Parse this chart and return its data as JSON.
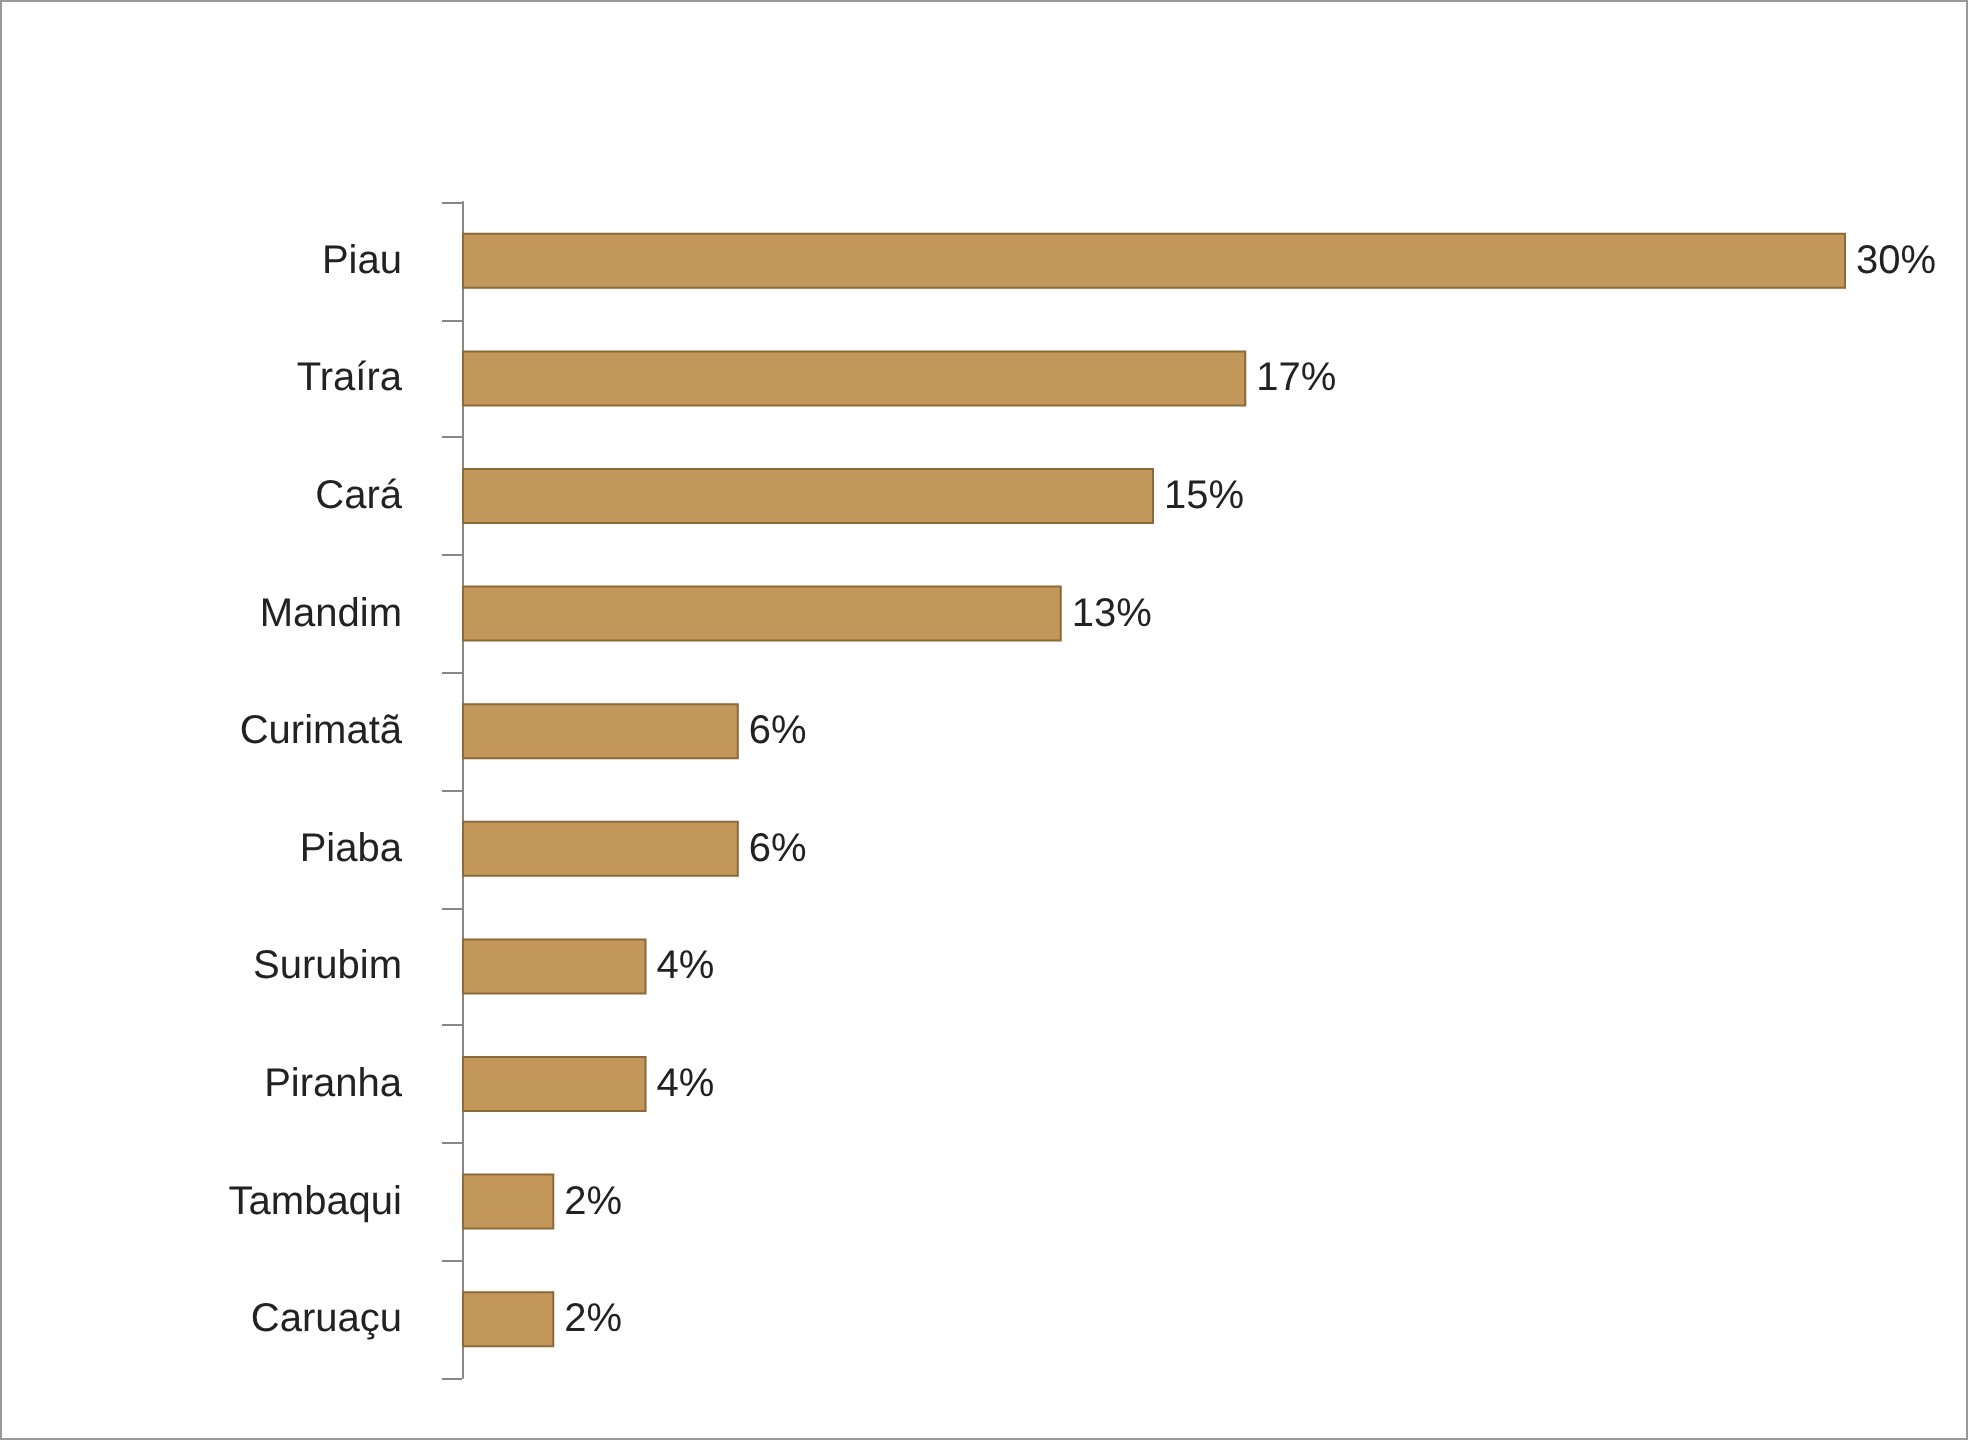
{
  "chart_data": {
    "type": "bar",
    "orientation": "horizontal",
    "categories": [
      "Piau",
      "Traíra",
      "Cará",
      "Mandim",
      "Curimatã",
      "Piaba",
      "Surubim",
      "Piranha",
      "Tambaqui",
      "Caruaçu"
    ],
    "values": [
      30,
      17,
      15,
      13,
      6,
      6,
      4,
      4,
      2,
      2
    ],
    "value_labels": [
      "30%",
      "17%",
      "15%",
      "13%",
      "6%",
      "6%",
      "4%",
      "4%",
      "2%",
      "2%"
    ],
    "color": "#c4975a",
    "xlim": [
      0,
      30
    ],
    "tick_labels": "y"
  }
}
